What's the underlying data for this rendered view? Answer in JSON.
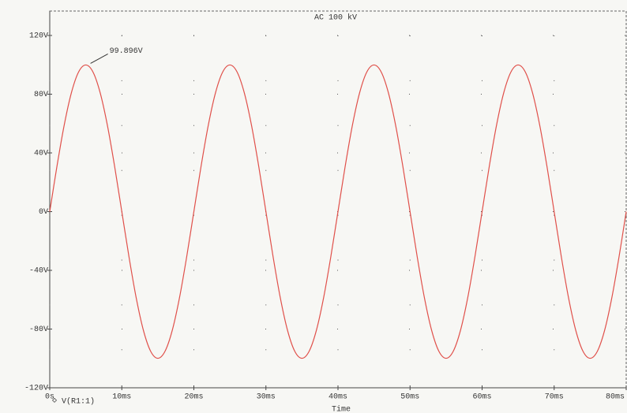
{
  "chart_data": {
    "type": "line",
    "title": "AC 100 kV",
    "x_label": "Time",
    "x": [
      0,
      1,
      2,
      3,
      4,
      5,
      6,
      7,
      8,
      9,
      10,
      11,
      12,
      13,
      14,
      15,
      16,
      17,
      18,
      19,
      20,
      21,
      22,
      23,
      24,
      25,
      26,
      27,
      28,
      29,
      30,
      31,
      32,
      33,
      34,
      35,
      36,
      37,
      38,
      39,
      40,
      41,
      42,
      43,
      44,
      45,
      46,
      47,
      48,
      49,
      50,
      51,
      52,
      53,
      54,
      55,
      56,
      57,
      58,
      59,
      60,
      61,
      62,
      63,
      64,
      65,
      66,
      67,
      68,
      69,
      70,
      71,
      72,
      73,
      74,
      75,
      76,
      77,
      78,
      79,
      80
    ],
    "series": [
      {
        "name": "V(R1:1)",
        "color": "#e0504a",
        "values": [
          0,
          30.9,
          58.8,
          80.9,
          95.1,
          99.896,
          95.1,
          80.9,
          58.8,
          30.9,
          0,
          -30.9,
          -58.8,
          -80.9,
          -95.1,
          -99.896,
          -95.1,
          -80.9,
          -58.8,
          -30.9,
          0,
          30.9,
          58.8,
          80.9,
          95.1,
          99.896,
          95.1,
          80.9,
          58.8,
          30.9,
          0,
          -30.9,
          -58.8,
          -80.9,
          -95.1,
          -99.896,
          -95.1,
          -80.9,
          -58.8,
          -30.9,
          0,
          30.9,
          58.8,
          80.9,
          95.1,
          99.896,
          95.1,
          80.9,
          58.8,
          30.9,
          0,
          -30.9,
          -58.8,
          -80.9,
          -95.1,
          -99.896,
          -95.1,
          -80.9,
          -58.8,
          -30.9,
          0,
          30.9,
          58.8,
          80.9,
          95.1,
          99.896,
          95.1,
          80.9,
          58.8,
          30.9,
          0,
          -30.9,
          -58.8,
          -80.9,
          -95.1,
          -99.896,
          -95.1,
          -80.9,
          -58.8,
          -30.9,
          0
        ]
      }
    ],
    "annotation": {
      "text": "99.896V",
      "x": 5,
      "y": 99.896
    },
    "xlim": [
      0,
      80
    ],
    "xticks": [
      {
        "value": 0,
        "label": "0s"
      },
      {
        "value": 10,
        "label": "10ms"
      },
      {
        "value": 20,
        "label": "20ms"
      },
      {
        "value": 30,
        "label": "30ms"
      },
      {
        "value": 40,
        "label": "40ms"
      },
      {
        "value": 50,
        "label": "50ms"
      },
      {
        "value": 60,
        "label": "60ms"
      },
      {
        "value": 70,
        "label": "70ms"
      },
      {
        "value": 80,
        "label": "80ms"
      }
    ],
    "ylim": [
      -120,
      120
    ],
    "yticks": [
      {
        "value": -120,
        "label": "-120V"
      },
      {
        "value": -80,
        "label": "-80V"
      },
      {
        "value": -40,
        "label": "-40V"
      },
      {
        "value": 0,
        "label": "0V"
      },
      {
        "value": 40,
        "label": "40V"
      },
      {
        "value": 80,
        "label": "80V"
      },
      {
        "value": 120,
        "label": "120V"
      }
    ],
    "grid": true
  }
}
